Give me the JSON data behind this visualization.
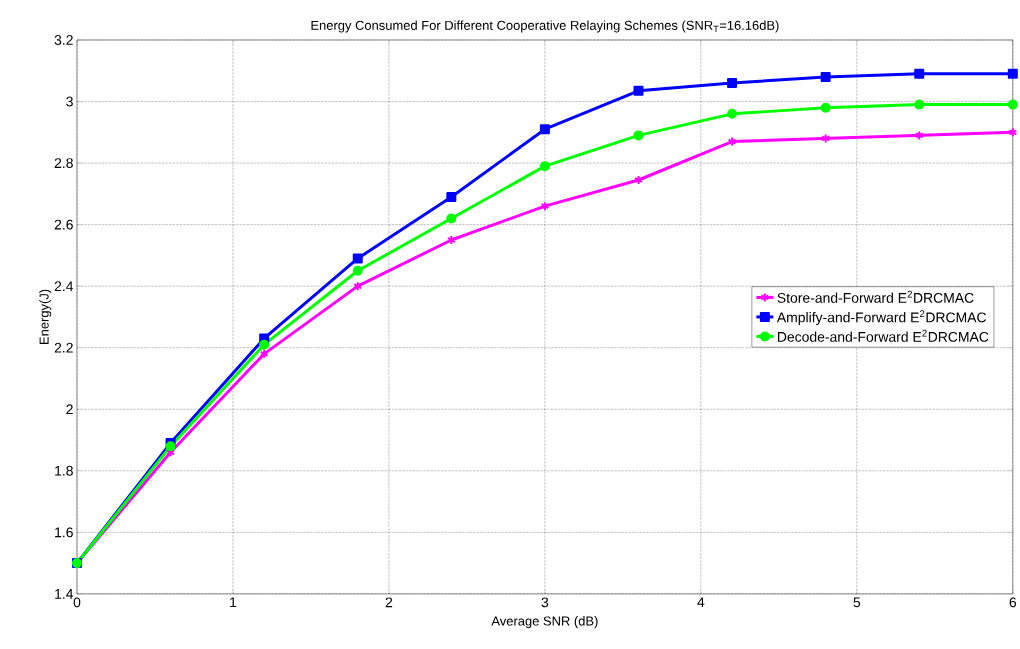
{
  "chart_data": {
    "type": "line",
    "title": "Energy Consumed For Different Cooperative Relaying Schemes (SNR$_{T}$=16.16dB)",
    "xlabel": "Average SNR (dB)",
    "ylabel": "Energy(J)",
    "x": [
      0,
      0.6,
      1.2,
      1.8,
      2.4,
      3.0,
      3.6,
      4.2,
      4.8,
      5.4,
      6.0
    ],
    "series": [
      {
        "name": "Store-and-Forward E$^{2}$DRCMAC",
        "color": "#ff00ff",
        "marker": "cross",
        "values": [
          1.5,
          1.86,
          2.18,
          2.4,
          2.55,
          2.66,
          2.745,
          2.87,
          2.88,
          2.89,
          2.9
        ]
      },
      {
        "name": "Amplify-and-Forward E$^{2}$DRCMAC",
        "color": "#0000ff",
        "marker": "square",
        "values": [
          1.5,
          1.89,
          2.23,
          2.49,
          2.69,
          2.91,
          3.035,
          3.06,
          3.08,
          3.09,
          3.09
        ]
      },
      {
        "name": "Decode-and-Forward E$^{2}$DRCMAC",
        "color": "#00ff00",
        "marker": "circle",
        "values": [
          1.5,
          1.88,
          2.21,
          2.45,
          2.62,
          2.79,
          2.89,
          2.96,
          2.98,
          2.99,
          2.99
        ]
      }
    ],
    "xlim": [
      0,
      6
    ],
    "ylim": [
      1.4,
      3.2
    ],
    "xticks": [
      0,
      1,
      2,
      3,
      4,
      5,
      6
    ],
    "yticks": [
      1.4,
      1.6,
      1.8,
      2,
      2.2,
      2.4,
      2.6,
      2.8,
      3,
      3.2
    ],
    "grid": true,
    "legend": "right",
    "line_style": "solid"
  }
}
